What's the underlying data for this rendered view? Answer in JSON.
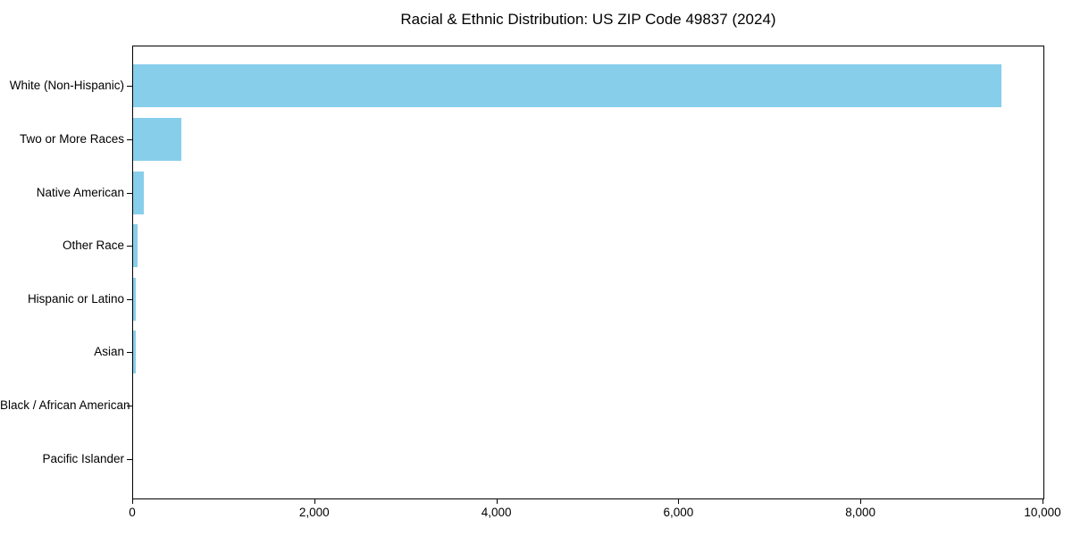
{
  "chart_data": {
    "type": "bar",
    "orientation": "horizontal",
    "title": "Racial & Ethnic Distribution: US ZIP Code 49837 (2024)",
    "categories": [
      "White (Non-Hispanic)",
      "Two or More Races",
      "Native American",
      "Other Race",
      "Hispanic or Latino",
      "Asian",
      "Black / African American",
      "Pacific Islander"
    ],
    "values": [
      9540,
      530,
      122,
      52,
      30,
      27,
      0,
      0
    ],
    "xlim": [
      0,
      10000
    ],
    "x_tick_values": [
      0,
      2000,
      4000,
      6000,
      8000,
      10000
    ],
    "x_tick_labels": [
      "0",
      "2,000",
      "4,000",
      "6,000",
      "8,000",
      "10,000"
    ],
    "xlabel": "",
    "ylabel": "",
    "grid": false,
    "legend": null,
    "bar_color": "#87CEEB",
    "axis_color": "#000000",
    "text_color": "#000000",
    "background_color": "#FFFFFF"
  }
}
